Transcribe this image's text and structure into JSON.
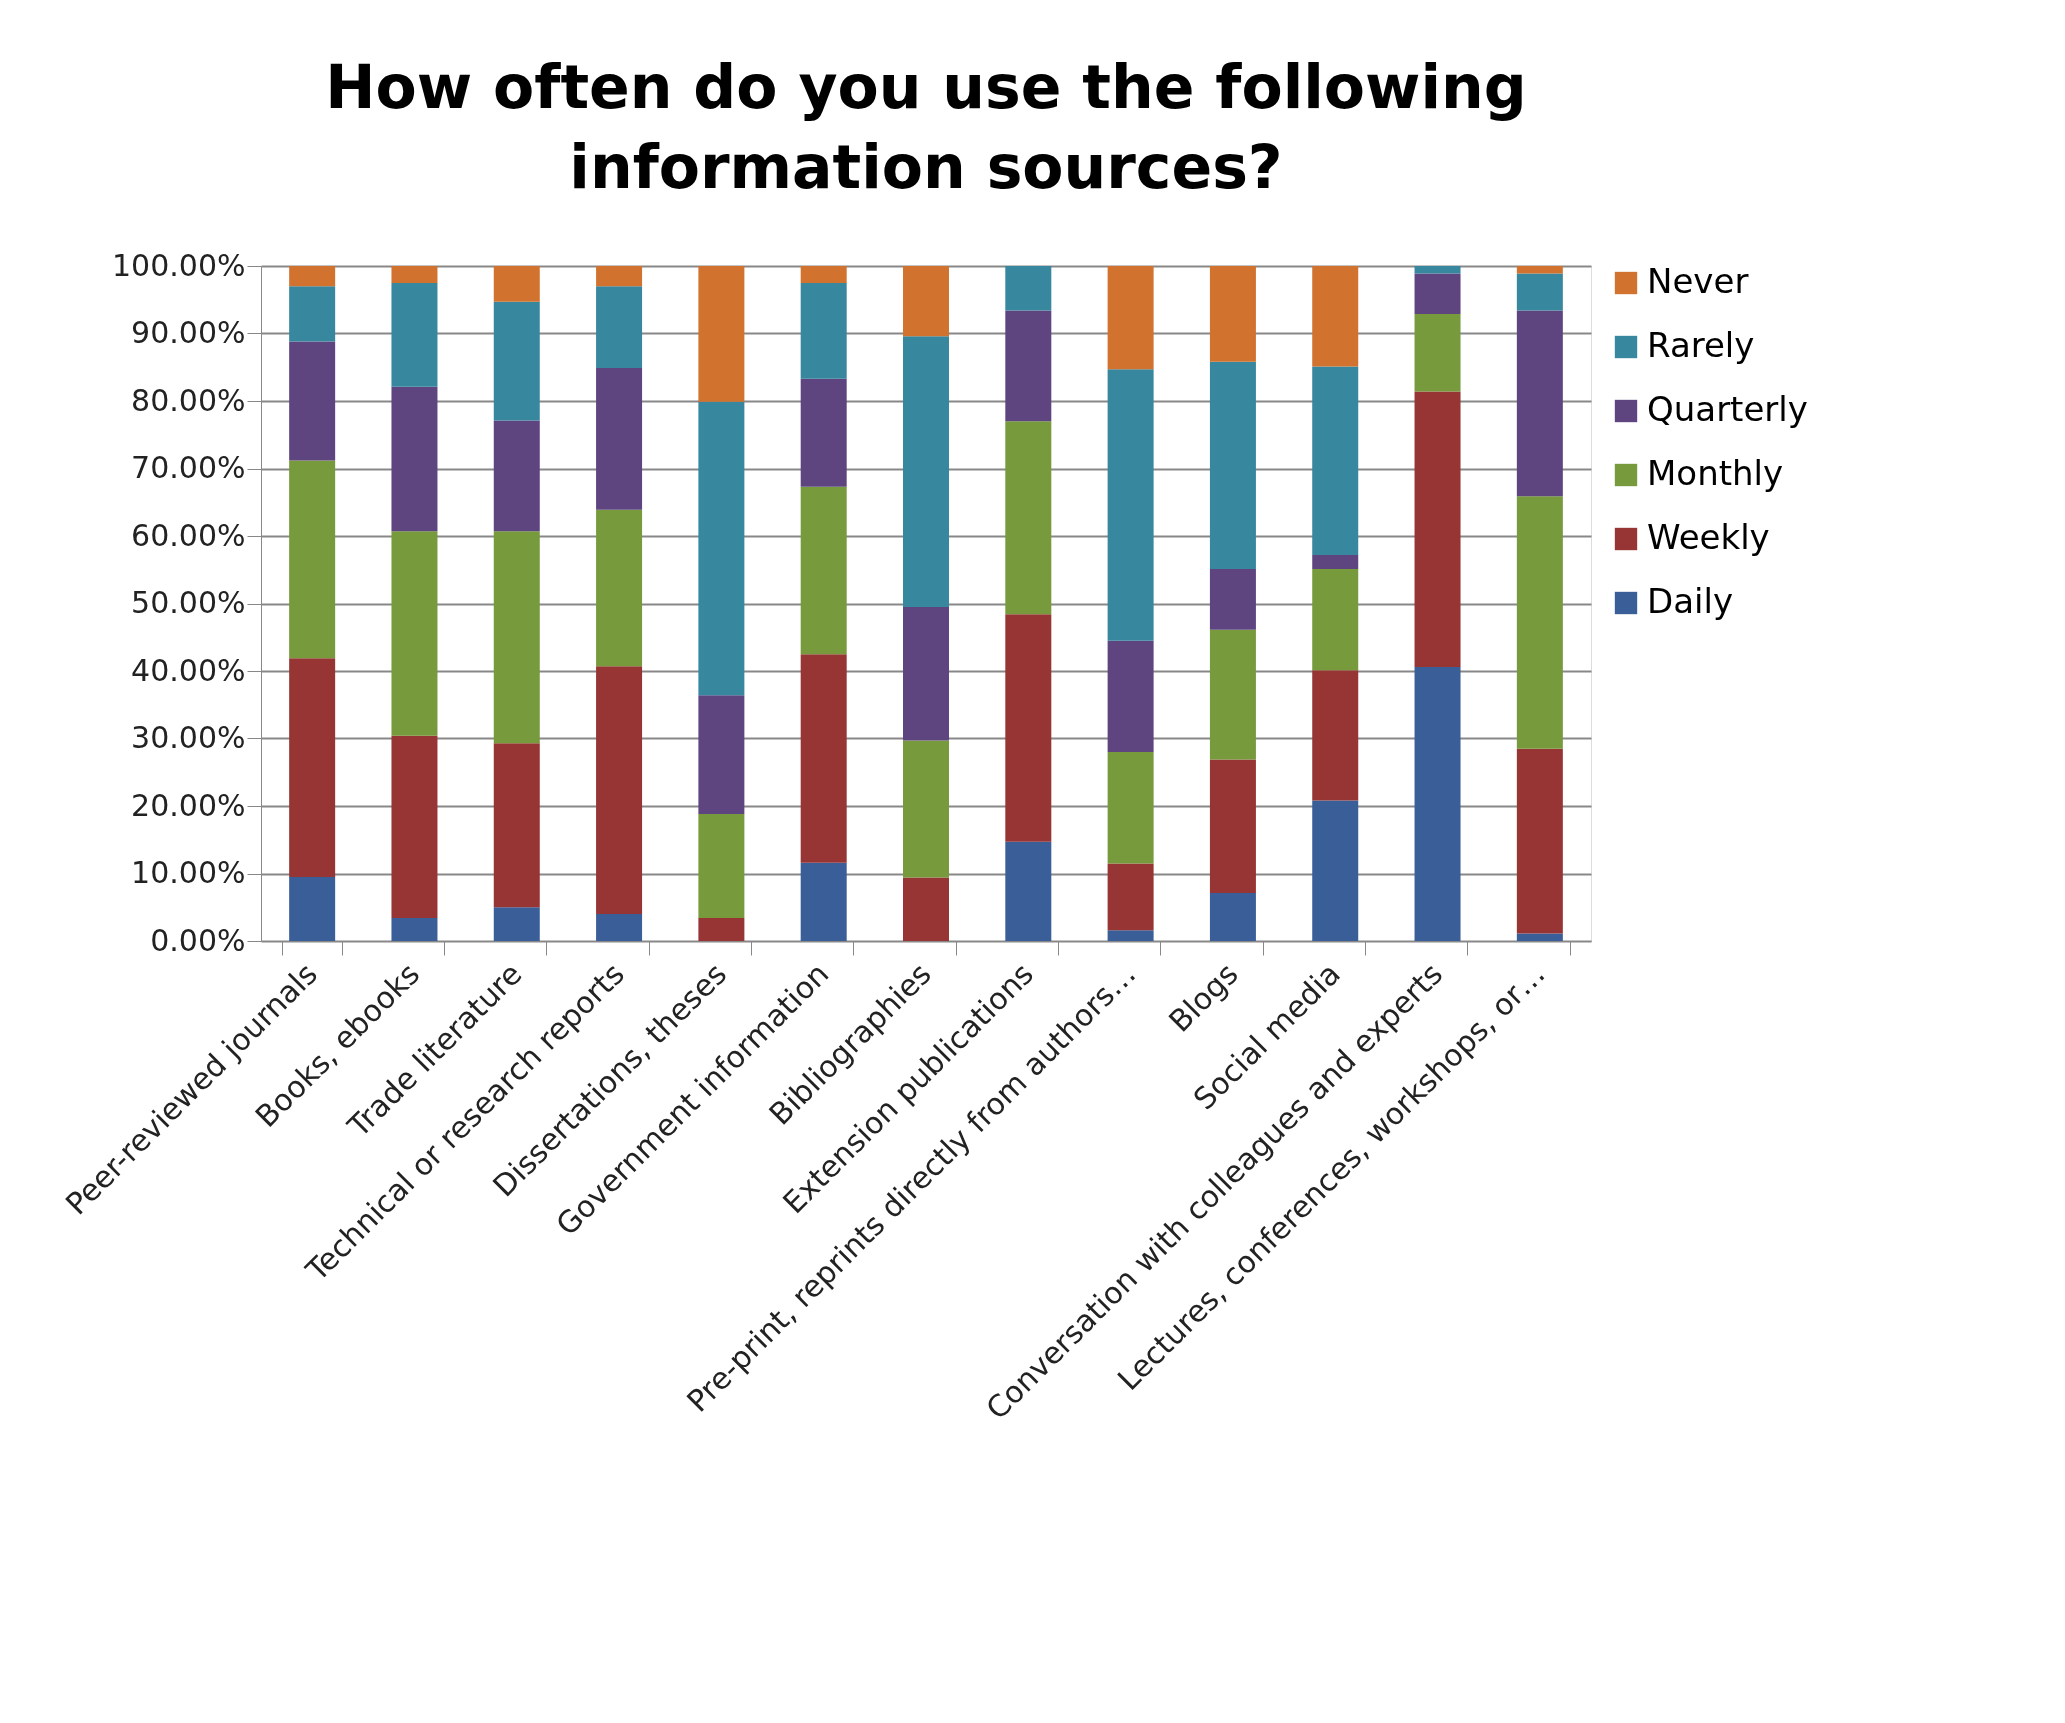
{
  "chart_data": {
    "type": "bar",
    "stacked": true,
    "title": "How often do you use the following information sources?",
    "categories": [
      "Peer-reviewed journals",
      "Books, ebooks",
      "Trade literature",
      "Technical or research reports",
      "Dissertations, theses",
      "Government information",
      "Bibliographies",
      "Extension publications",
      "Pre-print, reprints directly from authors…",
      "Blogs",
      "Social media",
      "Conversation with colleagues and experts",
      "Lectures, conferences, workshops, or…"
    ],
    "series": [
      {
        "name": "Daily",
        "color": "#3a5e98",
        "values": [
          9.5,
          3.4,
          5.0,
          4.0,
          0,
          11.6,
          0,
          14.7,
          1.6,
          7.1,
          20.8,
          40.6,
          1.1
        ]
      },
      {
        "name": "Weekly",
        "color": "#973434",
        "values": [
          32.4,
          27.0,
          24.3,
          36.7,
          3.4,
          30.9,
          9.4,
          33.7,
          9.9,
          19.8,
          19.3,
          40.8,
          27.4
        ]
      },
      {
        "name": "Monthly",
        "color": "#779a3c",
        "values": [
          29.3,
          30.3,
          31.4,
          23.2,
          15.4,
          24.8,
          20.3,
          28.6,
          16.5,
          19.2,
          15.0,
          11.5,
          37.4
        ]
      },
      {
        "name": "Quarterly",
        "color": "#5e4580",
        "values": [
          17.6,
          21.4,
          16.4,
          21.0,
          17.6,
          16.0,
          19.8,
          16.4,
          16.5,
          9.0,
          2.1,
          6.0,
          27.5
        ]
      },
      {
        "name": "Rarely",
        "color": "#37879f",
        "values": [
          8.2,
          15.4,
          17.6,
          12.1,
          43.5,
          14.2,
          40.1,
          6.6,
          40.2,
          30.7,
          27.9,
          1.1,
          5.5
        ]
      },
      {
        "name": "Never",
        "color": "#d2722f",
        "values": [
          3.0,
          2.5,
          5.3,
          3.0,
          20.1,
          2.5,
          10.4,
          0,
          15.3,
          14.2,
          14.9,
          0,
          1.1
        ]
      }
    ],
    "ylim": [
      0,
      100
    ],
    "yticks": [
      {
        "value": 0,
        "label": "0.00%"
      },
      {
        "value": 10,
        "label": "10.00%"
      },
      {
        "value": 20,
        "label": "20.00%"
      },
      {
        "value": 30,
        "label": "30.00%"
      },
      {
        "value": 40,
        "label": "40.00%"
      },
      {
        "value": 50,
        "label": "50.00%"
      },
      {
        "value": 60,
        "label": "60.00%"
      },
      {
        "value": 70,
        "label": "70.00%"
      },
      {
        "value": 80,
        "label": "80.00%"
      },
      {
        "value": 90,
        "label": "90.00%"
      },
      {
        "value": 100,
        "label": "100.00%"
      }
    ],
    "grid": "y",
    "legend": "right"
  }
}
